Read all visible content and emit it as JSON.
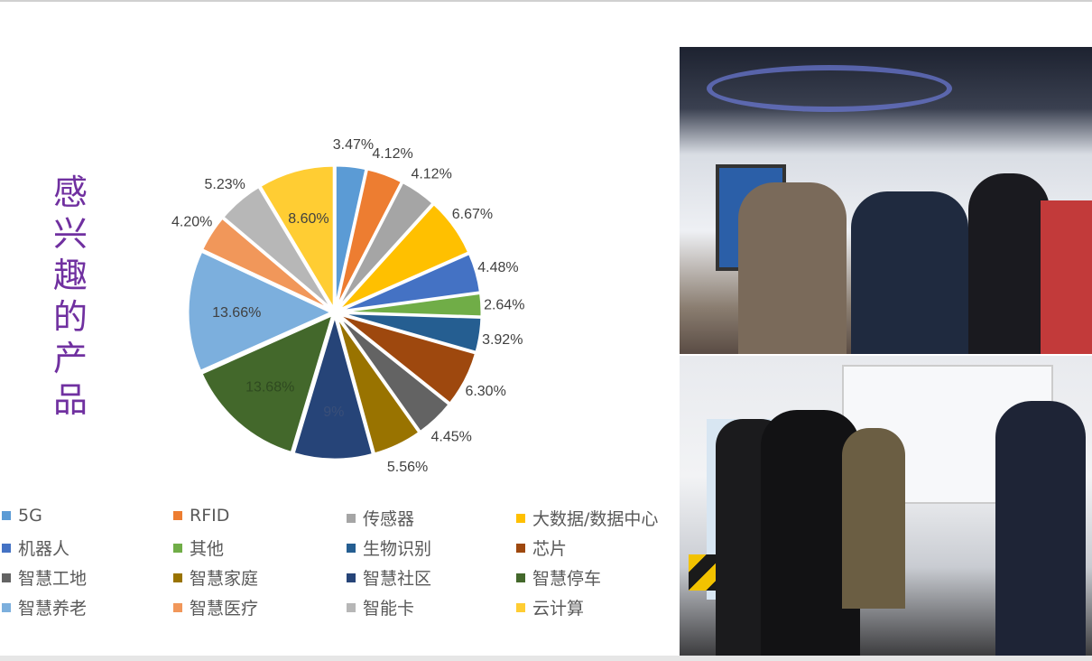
{
  "title_vertical": [
    "感",
    "兴",
    "趣",
    "的",
    "产",
    "品"
  ],
  "chart_data": {
    "type": "pie",
    "title": "",
    "start": "top",
    "direction": "clockwise",
    "legend_position": "bottom",
    "slices": [
      {
        "name": "5G",
        "value": 3.47,
        "label": "3.47%",
        "color": "#5b9bd5"
      },
      {
        "name": "RFID",
        "value": 4.12,
        "label": "4.12%",
        "color": "#ed7d31"
      },
      {
        "name": "传感器",
        "value": 4.12,
        "label": "4.12%",
        "color": "#a5a5a5"
      },
      {
        "name": "大数据/数据中心",
        "value": 6.67,
        "label": "6.67%",
        "color": "#ffc000"
      },
      {
        "name": "机器人",
        "value": 4.48,
        "label": "4.48%",
        "color": "#4472c4"
      },
      {
        "name": "其他",
        "value": 2.64,
        "label": "2.64%",
        "color": "#70ad47"
      },
      {
        "name": "生物识别",
        "value": 3.92,
        "label": "3.92%",
        "color": "#255e91"
      },
      {
        "name": "芯片",
        "value": 6.3,
        "label": "6.30%",
        "color": "#9e480e"
      },
      {
        "name": "智慧工地",
        "value": 4.45,
        "label": "4.45%",
        "color": "#636363"
      },
      {
        "name": "智慧家庭",
        "value": 5.56,
        "label": "5.56%",
        "color": "#997300"
      },
      {
        "name": "智慧社区",
        "value": 8.9,
        "label": "9%",
        "color": "#264478"
      },
      {
        "name": "智慧停车",
        "value": 13.68,
        "label": "13.68%",
        "color": "#43682b"
      },
      {
        "name": "智慧养老",
        "value": 13.66,
        "label": "13.66%",
        "color": "#7cafdd"
      },
      {
        "name": "智慧医疗",
        "value": 4.2,
        "label": "4.20%",
        "color": "#f1975a"
      },
      {
        "name": "智能卡",
        "value": 5.23,
        "label": "5.23%",
        "color": "#b7b7b7"
      },
      {
        "name": "云计算",
        "value": 8.6,
        "label": "8.60%",
        "color": "#ffcd33"
      }
    ]
  }
}
